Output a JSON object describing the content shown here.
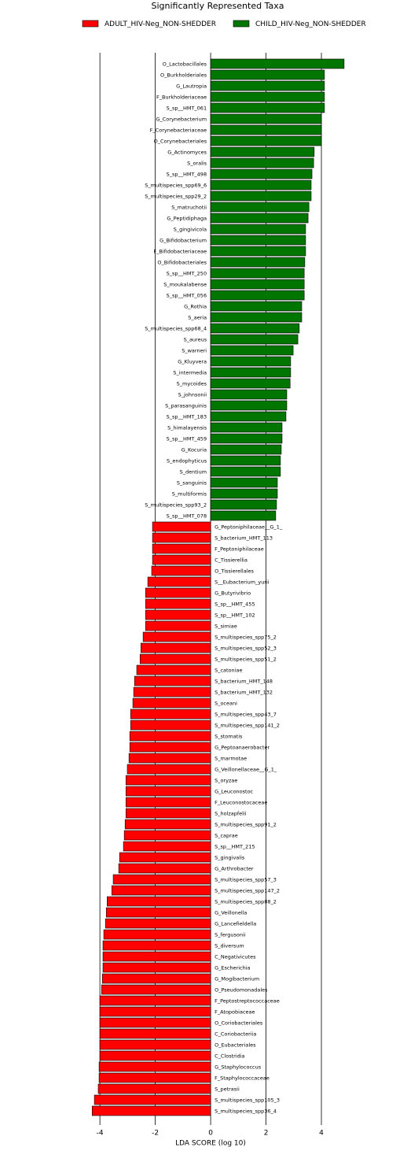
{
  "chart_data": {
    "type": "bar",
    "orientation": "horizontal",
    "title": "Significantly Represented Taxa",
    "x_label": "LDA SCORE (log 10)",
    "categories": [
      "O_Lactobacillales",
      "O_Burkholderiales",
      "G_Lautropia",
      "F_Burkholderiaceae",
      "S_sp__HMT_061",
      "G_Corynebacterium",
      "F_Corynebacteriaceae",
      "O_Corynebacteriales",
      "G_Actinomyces",
      "S_oralis",
      "S_sp__HMT_498",
      "S_multispecies_spp69_6",
      "S_multispecies_spp29_2",
      "S_matruchotii",
      "G_Peptidiphaga",
      "S_gingivicola",
      "G_Bifidobacterium",
      "F_Bifidobacteriaceae",
      "O_Bifidobacteriales",
      "S_sp__HMT_250",
      "S_moukalabense",
      "S_sp__HMT_056",
      "G_Rothia",
      "S_aeria",
      "S_multispecies_spp68_4",
      "S_aureus",
      "S_warneri",
      "G_Kluyvera",
      "S_intermedia",
      "S_mycoides",
      "S_johnsonii",
      "S_parasanguinis",
      "S_sp__HMT_183",
      "S_himalayensis",
      "S_sp__HMT_459",
      "G_Kocuria",
      "S_endophyticus",
      "S_dentium",
      "S_sanguinis",
      "S_multiformis",
      "S_multispecies_spp93_2",
      "S_sp__HMT_078",
      "G_Peptoniphilaceae__G_1_",
      "S_bacterium_HMT_113",
      "F_Peptoniphilaceae",
      "C_Tissierellia",
      "O_Tissierellales",
      "S__Eubacterium_yurii",
      "G_Butyrivibrio",
      "S_sp__HMT_455",
      "S_sp__HMT_102",
      "S_simiae",
      "S_multispecies_spp75_2",
      "S_multispecies_spp52_3",
      "S_multispecies_spp51_2",
      "S_catoniae",
      "S_bacterium_HMT_148",
      "S_bacterium_HMT_132",
      "S_oceani",
      "S_multispecies_spp43_7",
      "S_multispecies_spp141_2",
      "S_stomatis",
      "G_Peptoanaerobacter",
      "S_marmotae",
      "G_Veillonellaceae__G_1_",
      "S_oryzae",
      "G_Leuconostoc",
      "F_Leuconostocaceae",
      "S_holzapfelii",
      "S_multispecies_spp91_2",
      "S_caprae",
      "S_sp__HMT_215",
      "S_gingivalis",
      "G_Arthrobacter",
      "S_multispecies_spp57_3",
      "S_multispecies_spp147_2",
      "S_multispecies_spp88_2",
      "G_Veillonella",
      "G_Lancefieldella",
      "S_fergusonii",
      "S_diversum",
      "C_Negativicutes",
      "G_Escherichia",
      "G_Mogibacterium",
      "O_Pseudomonadales",
      "F_Peptostreptococcaceae",
      "F_Atopobiaceae",
      "O_Coriobacteriales",
      "C_Coriobacteriia",
      "O_Eubacteriales",
      "C_Clostridia",
      "G_Staphylococcus",
      "F_Staphylococcaceae",
      "S_petrasii",
      "S_multispecies_spp105_3",
      "S_multispecies_spp36_4"
    ],
    "series": [
      {
        "name": "ADULT_HIV-Neg_NON-SHEDDER",
        "color": "#ff0000",
        "values": [
          null,
          null,
          null,
          null,
          null,
          null,
          null,
          null,
          null,
          null,
          null,
          null,
          null,
          null,
          null,
          null,
          null,
          null,
          null,
          null,
          null,
          null,
          null,
          null,
          null,
          null,
          null,
          null,
          null,
          null,
          null,
          null,
          null,
          null,
          null,
          null,
          null,
          null,
          null,
          null,
          null,
          null,
          -2.1,
          -2.1,
          -2.1,
          -2.1,
          -2.13,
          -2.27,
          -2.35,
          -2.35,
          -2.35,
          -2.35,
          -2.44,
          -2.52,
          -2.55,
          -2.67,
          -2.75,
          -2.78,
          -2.81,
          -2.89,
          -2.89,
          -2.92,
          -2.92,
          -2.95,
          -3.01,
          -3.06,
          -3.06,
          -3.06,
          -3.06,
          -3.09,
          -3.12,
          -3.15,
          -3.29,
          -3.32,
          -3.52,
          -3.57,
          -3.74,
          -3.77,
          -3.8,
          -3.86,
          -3.89,
          -3.89,
          -3.89,
          -3.91,
          -3.94,
          -4.0,
          -4.0,
          -4.0,
          -4.0,
          -4.0,
          -4.0,
          -4.03,
          -4.03,
          -4.06,
          -4.2,
          -4.28
        ]
      },
      {
        "name": "CHILD_HIV-Neg_NON-SHEDDER",
        "color": "#007500",
        "values": [
          4.82,
          4.11,
          4.11,
          4.11,
          4.11,
          4.0,
          4.0,
          4.0,
          3.74,
          3.72,
          3.66,
          3.63,
          3.63,
          3.55,
          3.52,
          3.43,
          3.43,
          3.43,
          3.4,
          3.38,
          3.38,
          3.38,
          3.29,
          3.29,
          3.2,
          3.15,
          2.98,
          2.89,
          2.89,
          2.87,
          2.75,
          2.75,
          2.72,
          2.58,
          2.58,
          2.55,
          2.52,
          2.52,
          2.41,
          2.41,
          2.38,
          2.35,
          null,
          null,
          null,
          null,
          null,
          null,
          null,
          null,
          null,
          null,
          null,
          null,
          null,
          null,
          null,
          null,
          null,
          null,
          null,
          null,
          null,
          null,
          null,
          null,
          null,
          null,
          null,
          null,
          null,
          null,
          null,
          null,
          null,
          null,
          null,
          null,
          null,
          null,
          null,
          null,
          null,
          null,
          null,
          null,
          null,
          null,
          null,
          null,
          null,
          null,
          null,
          null,
          null,
          null
        ]
      }
    ],
    "xlim": [
      -4.6,
      5.1
    ],
    "xticks": [
      -4,
      -2,
      0,
      2,
      4
    ],
    "grid": true,
    "legend": "top"
  }
}
